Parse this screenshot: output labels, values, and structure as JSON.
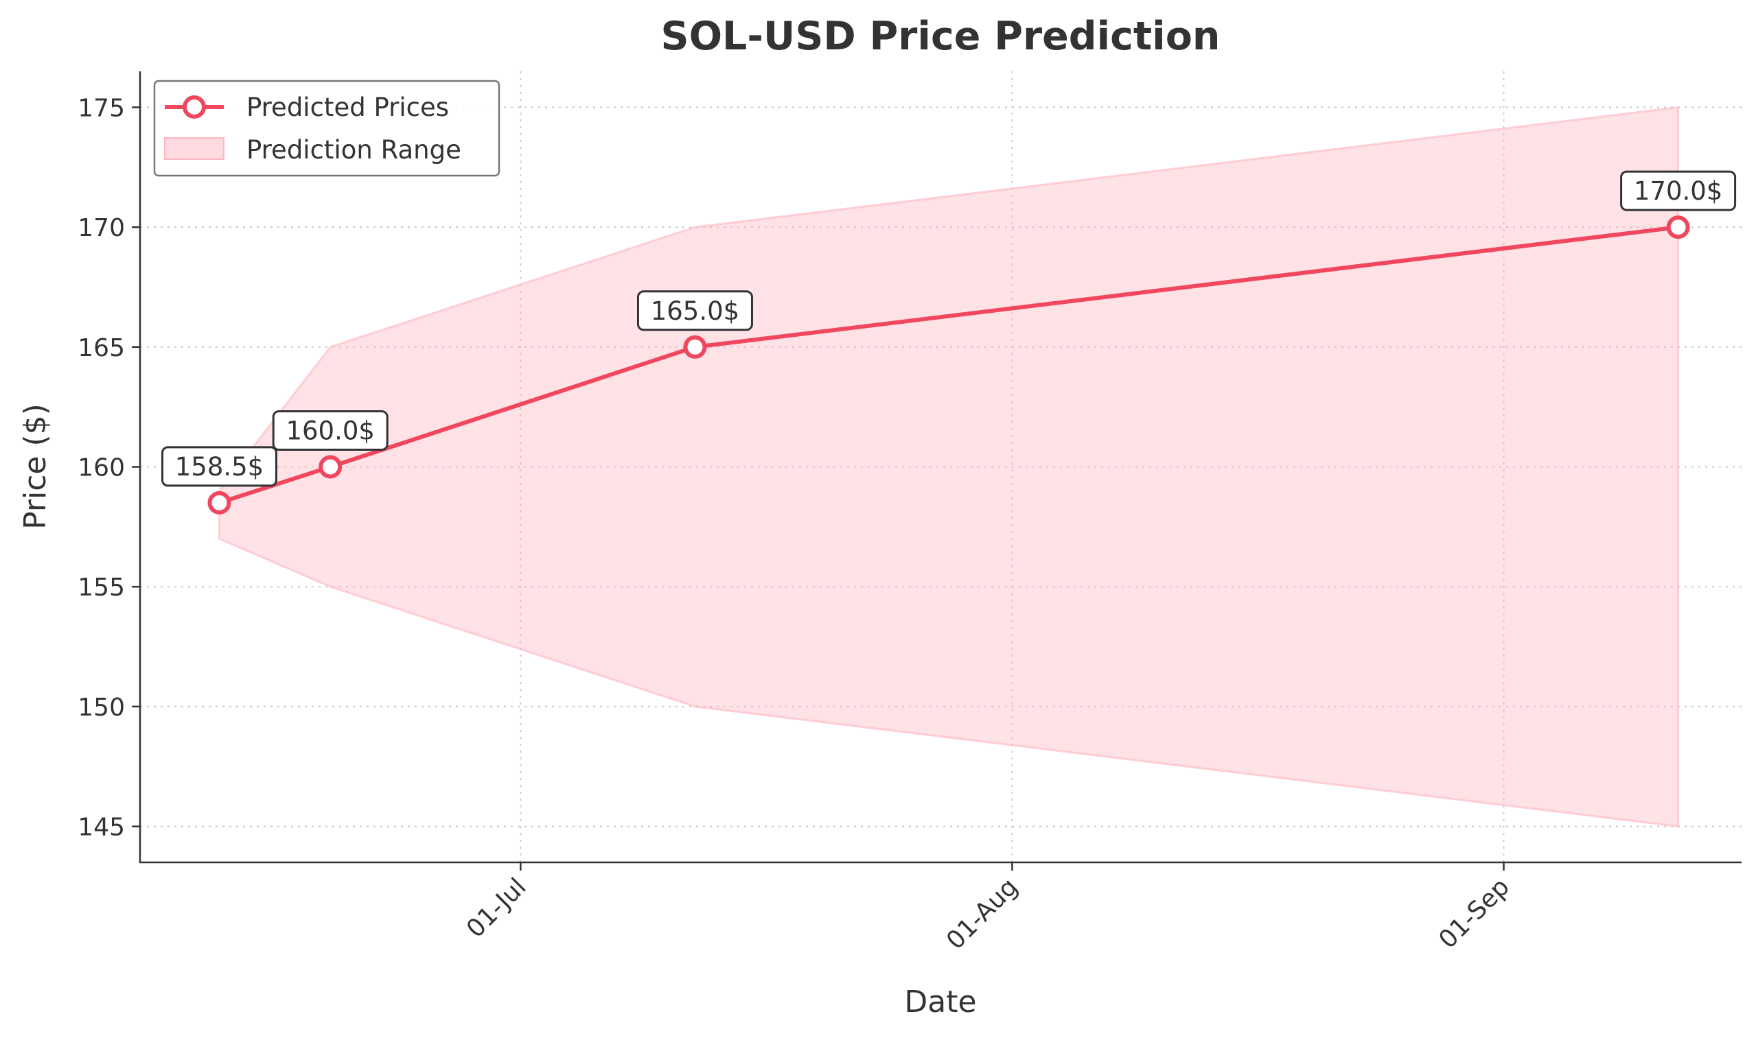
{
  "chart_data": {
    "type": "line",
    "title": "SOL-USD Price Prediction",
    "xlabel": "Date",
    "ylabel": "Price ($)",
    "x_ticks": [
      "01-Jul",
      "01-Aug",
      "01-Sep"
    ],
    "y_ticks": [
      145,
      150,
      155,
      160,
      165,
      170,
      175
    ],
    "ylim": [
      143.5,
      176.5
    ],
    "xlim": [
      "2024-06-07",
      "2024-09-16"
    ],
    "grid": true,
    "legend_position": "top-left",
    "series": [
      {
        "name": "Predicted Prices",
        "color": "#f0475f",
        "x": [
          "2024-06-12",
          "2024-06-19",
          "2024-07-12",
          "2024-09-12"
        ],
        "values": [
          158.5,
          160.0,
          165.0,
          170.0
        ],
        "labels": [
          "158.5$",
          "160.0$",
          "165.0$",
          "170.0$"
        ]
      }
    ],
    "range": {
      "name": "Prediction Range",
      "color": "#ffb6c1",
      "x": [
        "2024-06-12",
        "2024-06-19",
        "2024-07-12",
        "2024-09-12"
      ],
      "low": [
        157,
        155,
        150,
        145
      ],
      "high": [
        159,
        165,
        170,
        175
      ]
    }
  }
}
